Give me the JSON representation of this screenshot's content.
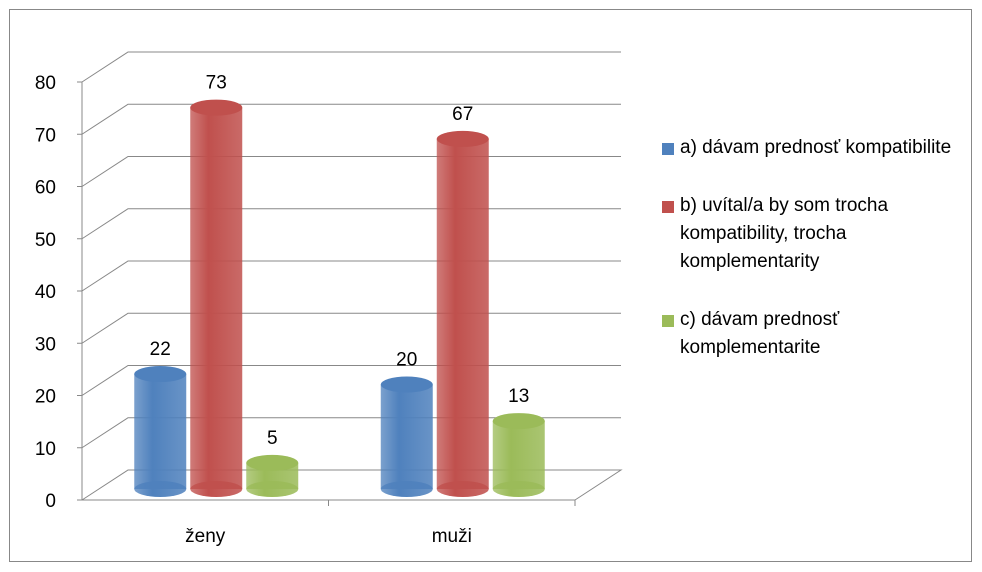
{
  "chart_data": {
    "type": "bar3d",
    "categories": [
      "ženy",
      "muži"
    ],
    "series": [
      {
        "name": "a) dávam prednosť kompatibilite",
        "color": "#4f81bd",
        "values": [
          22,
          20
        ]
      },
      {
        "name": "b) uvítal/a by som trocha kompatibility, trocha komplementarity",
        "color": "#c0504d",
        "values": [
          73,
          67
        ]
      },
      {
        "name": "c) dávam prednosť komplementarite",
        "color": "#9bbb59",
        "values": [
          5,
          13
        ]
      }
    ],
    "ylim": [
      0,
      80
    ],
    "yticks": [
      0,
      10,
      20,
      30,
      40,
      50,
      60,
      70,
      80
    ],
    "grid": true,
    "legend": "right"
  }
}
